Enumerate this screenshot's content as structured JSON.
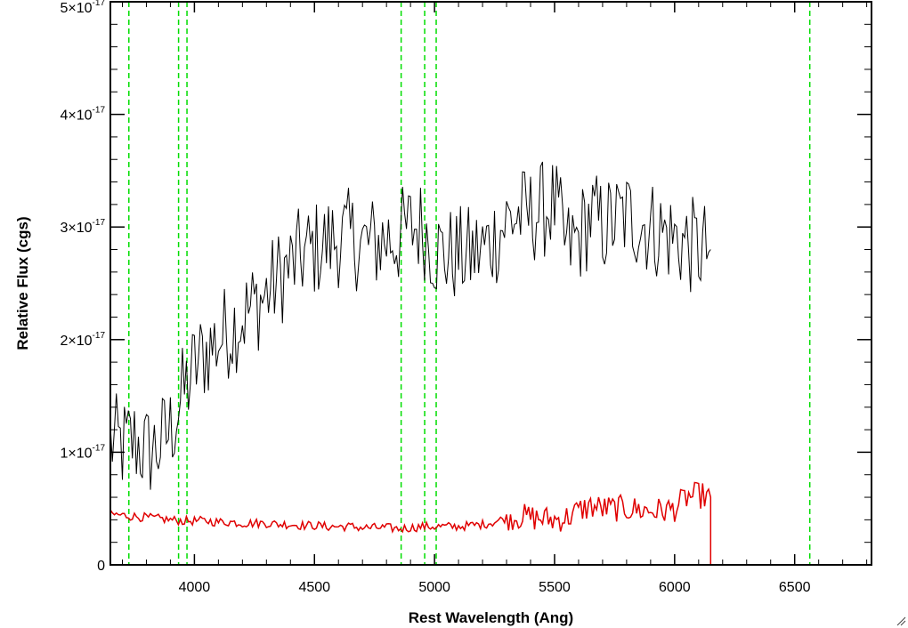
{
  "chart_data": {
    "type": "line",
    "title": "",
    "xlabel": "Rest Wavelength (Ang)",
    "ylabel": "Relative Flux (cgs)",
    "xlim": [
      3650,
      6820
    ],
    "ylim": [
      0,
      5e-17
    ],
    "x_ticks": [
      4000,
      4500,
      5000,
      5500,
      6000,
      6500
    ],
    "x_tick_labels": [
      "4000",
      "4500",
      "5000",
      "5500",
      "6000",
      "6500"
    ],
    "y_ticks": [
      0,
      1e-17,
      2e-17,
      3e-17,
      4e-17,
      5e-17
    ],
    "y_tick_labels": [
      {
        "mant": "0",
        "exp": ""
      },
      {
        "mant": "1×10",
        "exp": "-17"
      },
      {
        "mant": "2×10",
        "exp": "-17"
      },
      {
        "mant": "3×10",
        "exp": "-17"
      },
      {
        "mant": "4×10",
        "exp": "-17"
      },
      {
        "mant": "5×10",
        "exp": "-17"
      }
    ],
    "grid": false,
    "series": [
      {
        "role": "spectrum",
        "color": "#000000",
        "x": [
          3650,
          3700,
          3750,
          3800,
          3850,
          3900,
          3950,
          4000,
          4050,
          4100,
          4150,
          4200,
          4250,
          4300,
          4350,
          4400,
          4450,
          4500,
          4550,
          4600,
          4650,
          4700,
          4750,
          4800,
          4850,
          4900,
          4950,
          5000,
          5050,
          5100,
          5150,
          5200,
          5250,
          5300,
          5350,
          5400,
          5450,
          5500,
          5550,
          5600,
          5650,
          5700,
          5750,
          5800,
          5850,
          5900,
          5950,
          6000,
          6050,
          6100,
          6150
        ],
        "y": [
          1.1e-17,
          1.05e-17,
          1.1e-17,
          1e-17,
          1.05e-17,
          1.2e-17,
          1.5e-17,
          1.75e-17,
          1.9e-17,
          2e-17,
          2.1e-17,
          2.2e-17,
          2.3e-17,
          2.4e-17,
          2.55e-17,
          2.65e-17,
          2.75e-17,
          2.8e-17,
          2.85e-17,
          2.9e-17,
          2.9e-17,
          2.85e-17,
          2.85e-17,
          2.9e-17,
          2.9e-17,
          3e-17,
          3e-17,
          2.8e-17,
          2.75e-17,
          2.75e-17,
          2.75e-17,
          2.8e-17,
          2.9e-17,
          3.05e-17,
          3.1e-17,
          3.1e-17,
          3.15e-17,
          3.2e-17,
          2.8e-17,
          2.9e-17,
          3.1e-17,
          3e-17,
          3.05e-17,
          3.1e-17,
          3.05e-17,
          3e-17,
          2.95e-17,
          2.9e-17,
          2.85e-17,
          2.8e-17,
          2.8e-17
        ]
      },
      {
        "role": "error",
        "color": "#e00000",
        "x": [
          3650,
          3700,
          3750,
          3800,
          3850,
          3900,
          3950,
          4000,
          4050,
          4100,
          4150,
          4200,
          4250,
          4300,
          4350,
          4400,
          4450,
          4500,
          4550,
          4600,
          4650,
          4700,
          4750,
          4800,
          4850,
          4900,
          4950,
          5000,
          5050,
          5100,
          5150,
          5200,
          5250,
          5300,
          5350,
          5400,
          5450,
          5500,
          5550,
          5600,
          5650,
          5700,
          5750,
          5800,
          5850,
          5900,
          5950,
          6000,
          6050,
          6100,
          6150
        ],
        "y": [
          4.5e-18,
          4.4e-18,
          4.3e-18,
          4.2e-18,
          4.1e-18,
          4e-18,
          3.9e-18,
          3.9e-18,
          3.9e-18,
          3.8e-18,
          3.8e-18,
          3.7e-18,
          3.7e-18,
          3.7e-18,
          3.6e-18,
          3.6e-18,
          3.5e-18,
          3.5e-18,
          3.4e-18,
          3.4e-18,
          3.4e-18,
          3.3e-18,
          3.3e-18,
          3.3e-18,
          3.2e-18,
          3.3e-18,
          3.4e-18,
          3.4e-18,
          3.4e-18,
          3.4e-18,
          3.5e-18,
          3.6e-18,
          3.8e-18,
          4.2e-18,
          4.3e-18,
          4.2e-18,
          4.1e-18,
          4e-18,
          4.2e-18,
          4.8e-18,
          5.2e-18,
          5e-18,
          5e-18,
          5e-18,
          4.9e-18,
          4.8e-18,
          4.8e-18,
          5e-18,
          6e-18,
          6.2e-18,
          6e-18
        ]
      }
    ],
    "vlines": {
      "color": "#00dd00",
      "style": "dashed",
      "x": [
        3727,
        3934,
        3969,
        4861,
        4959,
        5007,
        6563
      ]
    }
  }
}
